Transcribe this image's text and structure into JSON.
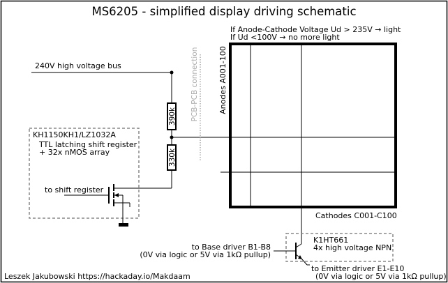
{
  "title": "MS6205 - simplified display driving schematic",
  "bus_label": "240V high voltage bus",
  "resistor_top": "390k",
  "resistor_bottom": "330k",
  "connection_label": "PCB-PCB connection",
  "ic_box": {
    "name": "KH1150KH1/LZ1032A",
    "desc_line1": "TTL latching shift register",
    "desc_line2": "+ 32x nMOS array",
    "input_label": "to shift register"
  },
  "display": {
    "note_line1": "If Anode-Cathode Voltage Ud > 235V → light",
    "note_line2": "If Ud <100V → no more light",
    "anodes_label": "Anodes A001-100",
    "cathodes_label": "Cathodes C001-C100"
  },
  "transistor_box": {
    "name": "K1HT661",
    "desc": "4x high voltage NPN"
  },
  "base_driver": {
    "line1": "to Base driver B1-B8",
    "line2": "(0V via logic or 5V via 1kΩ pullup)"
  },
  "emitter_driver": {
    "line1": "to Emitter driver E1-E10",
    "line2": "(0V via logic or 5V via 1kΩ pullup)"
  },
  "author": "Leszek Jakubowski https://hackaday.io/Makdaam"
}
